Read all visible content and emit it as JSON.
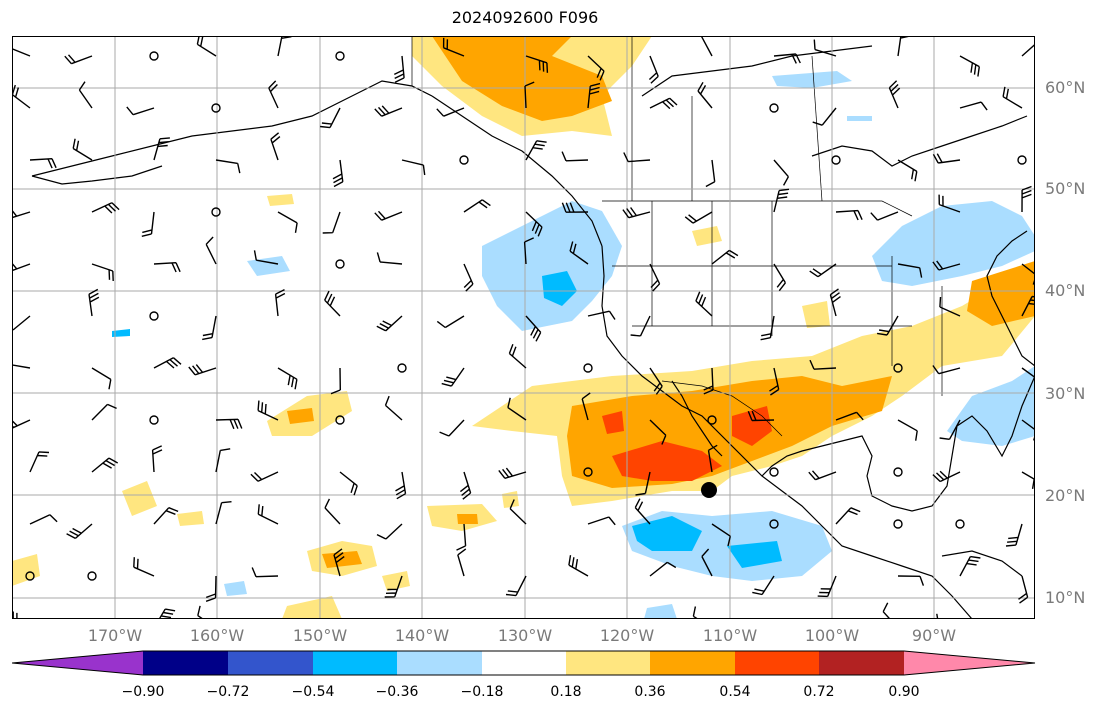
{
  "title": "2024092600 F096",
  "lat_labels": [
    "60°N",
    "50°N",
    "40°N",
    "30°N",
    "20°N",
    "10°N"
  ],
  "lon_labels": [
    "170°W",
    "160°W",
    "150°W",
    "140°W",
    "130°W",
    "120°W",
    "110°W",
    "100°W",
    "90°W"
  ],
  "colorbar": {
    "tick_labels": [
      "−0.90",
      "−0.72",
      "−0.54",
      "−0.36",
      "−0.18",
      "0.18",
      "0.36",
      "0.54",
      "0.72",
      "0.90"
    ],
    "colors": [
      "#9933cc",
      "#000088",
      "#3355cc",
      "#00bbff",
      "#aaddff",
      "#ffffff",
      "#ffe680",
      "#ffa500",
      "#ff4400",
      "#b22222",
      "#ff88aa"
    ]
  },
  "colors": {
    "pos_light": "#ffe680",
    "pos_mid": "#ffa500",
    "pos_strong": "#ff4400",
    "neg_light": "#aaddff",
    "neg_mid": "#00bbff",
    "grid": "#aaaaaa",
    "coast": "#000000"
  },
  "marker": {
    "label": "center-marker"
  }
}
